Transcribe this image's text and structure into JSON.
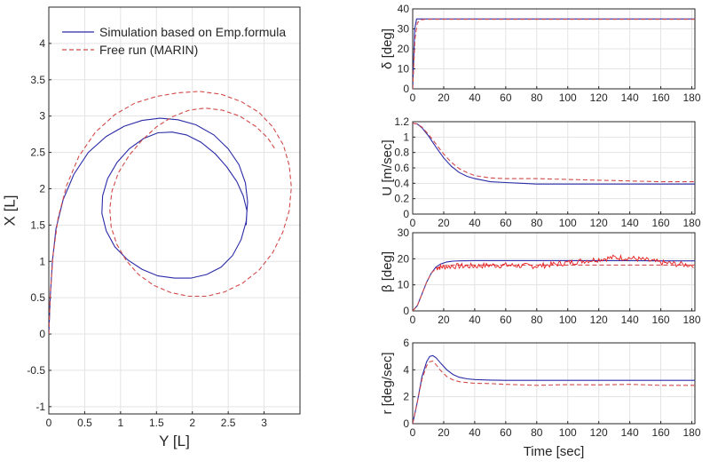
{
  "colors": {
    "simulation": "#2b2ba8",
    "free_run": "#d24a4a",
    "beta_noise": "#e81c1c"
  },
  "chart_data": [
    {
      "type": "line",
      "xlabel": "Y [L]",
      "ylabel": "X [L]",
      "xlim": [
        0,
        3.5
      ],
      "ylim": [
        -1.1,
        4.5
      ],
      "xticks": [
        "0",
        "0.5",
        "1",
        "1.5",
        "2",
        "2.5",
        "3"
      ],
      "yticks": [
        "-1",
        "-0.5",
        "0",
        "0.5",
        "1",
        "1.5",
        "2",
        "2.5",
        "3",
        "3.5",
        "4"
      ],
      "grid": true,
      "legend_position": "top-left",
      "legend": [
        "Simulation based on Emp.formula",
        "Free run (MARIN)"
      ],
      "series": [
        {
          "name": "Simulation based on Emp.formula",
          "style": "solid",
          "x": [
            0,
            0.02,
            0.05,
            0.1,
            0.2,
            0.35,
            0.55,
            0.8,
            1.05,
            1.3,
            1.55,
            1.8,
            2.05,
            2.3,
            2.5,
            2.65,
            2.74,
            2.77,
            2.75,
            2.68,
            2.56,
            2.4,
            2.2,
            1.98,
            1.75,
            1.52,
            1.3,
            1.1,
            0.92,
            0.8,
            0.74,
            0.75,
            0.82,
            0.95,
            1.12,
            1.32,
            1.52,
            1.72,
            1.92,
            2.12,
            2.32,
            2.48,
            2.62,
            2.71,
            2.76,
            2.75
          ],
          "y": [
            0,
            0.5,
            1.0,
            1.45,
            1.85,
            2.2,
            2.5,
            2.72,
            2.86,
            2.94,
            2.97,
            2.95,
            2.88,
            2.74,
            2.55,
            2.33,
            2.08,
            1.82,
            1.55,
            1.3,
            1.08,
            0.92,
            0.82,
            0.77,
            0.77,
            0.8,
            0.89,
            1.02,
            1.2,
            1.42,
            1.66,
            1.9,
            2.14,
            2.36,
            2.55,
            2.69,
            2.77,
            2.78,
            2.74,
            2.64,
            2.48,
            2.3,
            2.1,
            1.9,
            1.7,
            1.5
          ]
        },
        {
          "name": "Free run (MARIN)",
          "style": "dashed",
          "x": [
            0,
            0.02,
            0.06,
            0.13,
            0.25,
            0.42,
            0.65,
            0.92,
            1.2,
            1.5,
            1.8,
            2.1,
            2.4,
            2.68,
            2.93,
            3.12,
            3.27,
            3.35,
            3.38,
            3.35,
            3.26,
            3.12,
            2.93,
            2.7,
            2.45,
            2.2,
            1.95,
            1.7,
            1.46,
            1.25,
            1.08,
            0.95,
            0.87,
            0.85,
            0.88,
            0.97,
            1.12,
            1.3,
            1.5,
            1.72,
            1.95,
            2.18,
            2.42,
            2.66,
            2.88,
            3.05,
            3.15
          ],
          "y": [
            0,
            0.55,
            1.1,
            1.6,
            2.05,
            2.45,
            2.78,
            3.02,
            3.18,
            3.27,
            3.32,
            3.34,
            3.3,
            3.2,
            3.05,
            2.85,
            2.6,
            2.32,
            2.02,
            1.7,
            1.4,
            1.12,
            0.88,
            0.7,
            0.58,
            0.52,
            0.52,
            0.57,
            0.67,
            0.82,
            1.01,
            1.23,
            1.47,
            1.72,
            1.97,
            2.22,
            2.46,
            2.67,
            2.85,
            2.99,
            3.08,
            3.11,
            3.08,
            3.0,
            2.86,
            2.7,
            2.55
          ]
        }
      ]
    },
    {
      "type": "line",
      "ylabel": "δ [deg]",
      "xlim": [
        0,
        182
      ],
      "ylim": [
        0,
        40
      ],
      "xticks": [
        "0",
        "20",
        "40",
        "60",
        "80",
        "100",
        "120",
        "140",
        "160",
        "180"
      ],
      "yticks": [
        "0",
        "10",
        "20",
        "30",
        "40"
      ],
      "grid": true,
      "series": [
        {
          "style": "solid",
          "x": [
            0,
            1.3,
            2.5,
            4,
            182
          ],
          "y": [
            0,
            30,
            35,
            35,
            35
          ]
        },
        {
          "style": "dashed",
          "x": [
            0,
            1.5,
            3,
            5,
            8,
            182
          ],
          "y": [
            0,
            25,
            33,
            34.5,
            34.8,
            34.8
          ]
        }
      ]
    },
    {
      "type": "line",
      "ylabel": "U [m/sec]",
      "xlim": [
        0,
        182
      ],
      "ylim": [
        0,
        1.2
      ],
      "xticks": [
        "0",
        "20",
        "40",
        "60",
        "80",
        "100",
        "120",
        "140",
        "160",
        "180"
      ],
      "yticks": [
        "0",
        "0.2",
        "0.4",
        "0.6",
        "0.8",
        "1",
        "1.2"
      ],
      "grid": true,
      "series": [
        {
          "style": "solid",
          "x": [
            0,
            3,
            6,
            10,
            15,
            20,
            25,
            30,
            35,
            40,
            50,
            60,
            70,
            80,
            100,
            120,
            140,
            160,
            182
          ],
          "y": [
            1.18,
            1.17,
            1.12,
            1.02,
            0.87,
            0.73,
            0.62,
            0.54,
            0.49,
            0.46,
            0.42,
            0.41,
            0.4,
            0.39,
            0.39,
            0.39,
            0.39,
            0.39,
            0.39
          ]
        },
        {
          "style": "dashed",
          "x": [
            0,
            3,
            6,
            10,
            15,
            20,
            25,
            30,
            35,
            40,
            50,
            60,
            70,
            80,
            100,
            120,
            140,
            160,
            182
          ],
          "y": [
            1.18,
            1.17,
            1.13,
            1.04,
            0.91,
            0.78,
            0.67,
            0.59,
            0.54,
            0.5,
            0.47,
            0.46,
            0.46,
            0.46,
            0.45,
            0.44,
            0.43,
            0.42,
            0.42
          ]
        }
      ]
    },
    {
      "type": "line",
      "ylabel": "β [deg]",
      "xlim": [
        0,
        182
      ],
      "ylim": [
        0,
        30
      ],
      "xticks": [
        "0",
        "20",
        "40",
        "60",
        "80",
        "100",
        "120",
        "140",
        "160",
        "180"
      ],
      "yticks": [
        "0",
        "10",
        "20",
        "30"
      ],
      "grid": true,
      "series": [
        {
          "style": "solid",
          "x": [
            0,
            3,
            6,
            9,
            12,
            15,
            18,
            22,
            26,
            30,
            40,
            60,
            80,
            100,
            120,
            140,
            160,
            182
          ],
          "y": [
            0,
            2,
            6.5,
            11,
            14.5,
            16.8,
            18,
            18.8,
            19.1,
            19.2,
            19.3,
            19.3,
            19.3,
            19.3,
            19.3,
            19.3,
            19.2,
            19.2
          ]
        },
        {
          "style": "dashed",
          "x": [
            0,
            3,
            6,
            9,
            12,
            15,
            18,
            22,
            26,
            30,
            182
          ],
          "y": [
            0,
            2,
            6.5,
            11,
            14.5,
            16.3,
            17,
            17.5,
            17.6,
            17.6,
            17.6
          ]
        },
        {
          "style": "noisy",
          "x": [
            15,
            20,
            30,
            40,
            50,
            60,
            70,
            80,
            90,
            100,
            110,
            120,
            130,
            140,
            150,
            160,
            170,
            182
          ],
          "y": [
            16.5,
            17,
            17.2,
            17.2,
            17.5,
            17.5,
            17.3,
            17.2,
            17.8,
            18.5,
            19.2,
            19.8,
            20.5,
            20.3,
            19.5,
            18.5,
            18,
            17.5
          ]
        }
      ]
    },
    {
      "type": "line",
      "ylabel": "r [deg/sec]",
      "xlabel": "Time [sec]",
      "xlim": [
        0,
        182
      ],
      "ylim": [
        0,
        6
      ],
      "xticks": [
        "0",
        "20",
        "40",
        "60",
        "80",
        "100",
        "120",
        "140",
        "160",
        "180"
      ],
      "yticks": [
        "0",
        "2",
        "4",
        "6"
      ],
      "grid": true,
      "series": [
        {
          "style": "solid",
          "x": [
            0,
            3,
            6,
            9,
            11,
            13,
            15,
            18,
            22,
            26,
            30,
            35,
            40,
            50,
            60,
            80,
            100,
            140,
            182
          ],
          "y": [
            0,
            1.6,
            3.5,
            4.6,
            5.0,
            5.05,
            4.9,
            4.5,
            4.0,
            3.65,
            3.45,
            3.33,
            3.28,
            3.24,
            3.22,
            3.22,
            3.22,
            3.22,
            3.22
          ]
        },
        {
          "style": "dashed",
          "x": [
            0,
            3,
            6,
            9,
            11,
            13,
            15,
            18,
            22,
            26,
            30,
            35,
            40,
            50,
            60,
            80,
            100,
            120,
            140,
            160,
            182
          ],
          "y": [
            0,
            1.6,
            3.3,
            4.3,
            4.6,
            4.65,
            4.4,
            3.95,
            3.5,
            3.25,
            3.12,
            3.05,
            3.0,
            2.98,
            2.92,
            2.85,
            2.9,
            2.88,
            2.92,
            2.85,
            2.85
          ]
        }
      ]
    }
  ]
}
